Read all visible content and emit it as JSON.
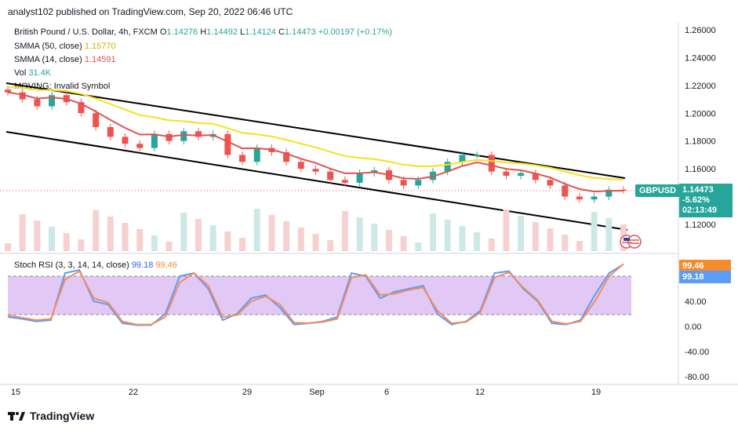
{
  "publish_line": "analyst102 published on TradingView.com, Sep 20, 2022 06:46 UTC",
  "symbol_line": {
    "title": "British Pound / U.S. Dollar, 4h, FXCM",
    "open_label": "O",
    "open": "1.14276",
    "high_label": "H",
    "high": "1.14492",
    "low_label": "L",
    "low": "1.14124",
    "close_label": "C",
    "close": "1.14473",
    "change": "+0.00197 (+0.17%)"
  },
  "indicators": {
    "smma50_label": "SMMA (50, close)",
    "smma50_value": "1.15770",
    "smma14_label": "SMMA (14, close)",
    "smma14_value": "1.14591",
    "vol_label": "Vol",
    "vol_value": "31.4K",
    "moving_label": "MOVING: Invalid Symbol"
  },
  "price_tag": {
    "symbol": "GBPUSD",
    "price": "1.14473",
    "change_pct": "-5.62%",
    "countdown": "02:13:49"
  },
  "stoch_legend": {
    "label": "Stoch RSI (3, 3, 14, 14, close)",
    "k_value": "99.18",
    "d_value": "99.46"
  },
  "footer": {
    "brand": "TradingView",
    "logo": "tradingview-logo-icon"
  },
  "colors": {
    "up": "#26a69a",
    "down": "#ef5350",
    "smma50": "#f5e21b",
    "smma14": "#e05252",
    "trendline": "#000000",
    "stoch_k": "#5b9cf6",
    "stoch_d": "#f48c5c",
    "stoch_band": "#e1c8f5",
    "price_badge": "#26a69a"
  },
  "chart_data": [
    {
      "type": "candlestick",
      "title": "British Pound / U.S. Dollar, 4h, FXCM",
      "y_ticks": [
        "1.26000",
        "1.24000",
        "1.22000",
        "1.20000",
        "1.18000",
        "1.16000",
        "1.12000"
      ],
      "ylim": [
        1.105,
        1.265
      ],
      "x_ticks": [
        "15",
        "22",
        "29",
        "Sep",
        "6",
        "12",
        "19"
      ],
      "approx_close_path": [
        1.215,
        1.21,
        1.205,
        1.213,
        1.208,
        1.2,
        1.19,
        1.183,
        1.178,
        1.175,
        1.185,
        1.18,
        1.187,
        1.183,
        1.185,
        1.17,
        1.165,
        1.175,
        1.172,
        1.165,
        1.16,
        1.158,
        1.152,
        1.15,
        1.157,
        1.159,
        1.152,
        1.148,
        1.152,
        1.158,
        1.165,
        1.17,
        1.17,
        1.158,
        1.155,
        1.157,
        1.152,
        1.148,
        1.14,
        1.138,
        1.14,
        1.145,
        1.1447
      ],
      "series": [
        {
          "name": "SMMA (50, close)",
          "last": 1.1577
        },
        {
          "name": "SMMA (14, close)",
          "last": 1.14591
        }
      ],
      "channel_lines": [
        {
          "from": [
            0,
            1.222
          ],
          "to": [
            1,
            1.1555
          ]
        },
        {
          "from": [
            0,
            1.187
          ],
          "to": [
            1,
            1.117
          ]
        }
      ],
      "volume_last": "31.4K"
    },
    {
      "type": "line",
      "title": "Stoch RSI (3, 3, 14, 14, close)",
      "y_ticks": [
        "80.00",
        "40.00",
        "0.00",
        "-40.00",
        "-80.00"
      ],
      "ylim": [
        -85,
        130
      ],
      "band": [
        20,
        80
      ],
      "series": [
        {
          "name": "K",
          "values": [
            15,
            12,
            8,
            10,
            85,
            90,
            40,
            35,
            5,
            2,
            2,
            20,
            80,
            85,
            60,
            10,
            20,
            45,
            50,
            30,
            3,
            5,
            8,
            15,
            85,
            80,
            45,
            55,
            60,
            65,
            20,
            3,
            8,
            25,
            85,
            88,
            60,
            40,
            5,
            3,
            10,
            50,
            85,
            99.18
          ]
        },
        {
          "name": "D",
          "values": [
            18,
            14,
            10,
            12,
            75,
            88,
            45,
            38,
            8,
            3,
            3,
            15,
            70,
            85,
            65,
            15,
            18,
            40,
            48,
            35,
            6,
            5,
            7,
            12,
            78,
            82,
            50,
            52,
            58,
            62,
            25,
            5,
            7,
            22,
            78,
            86,
            62,
            42,
            8,
            4,
            8,
            40,
            80,
            99.46
          ]
        }
      ]
    }
  ]
}
